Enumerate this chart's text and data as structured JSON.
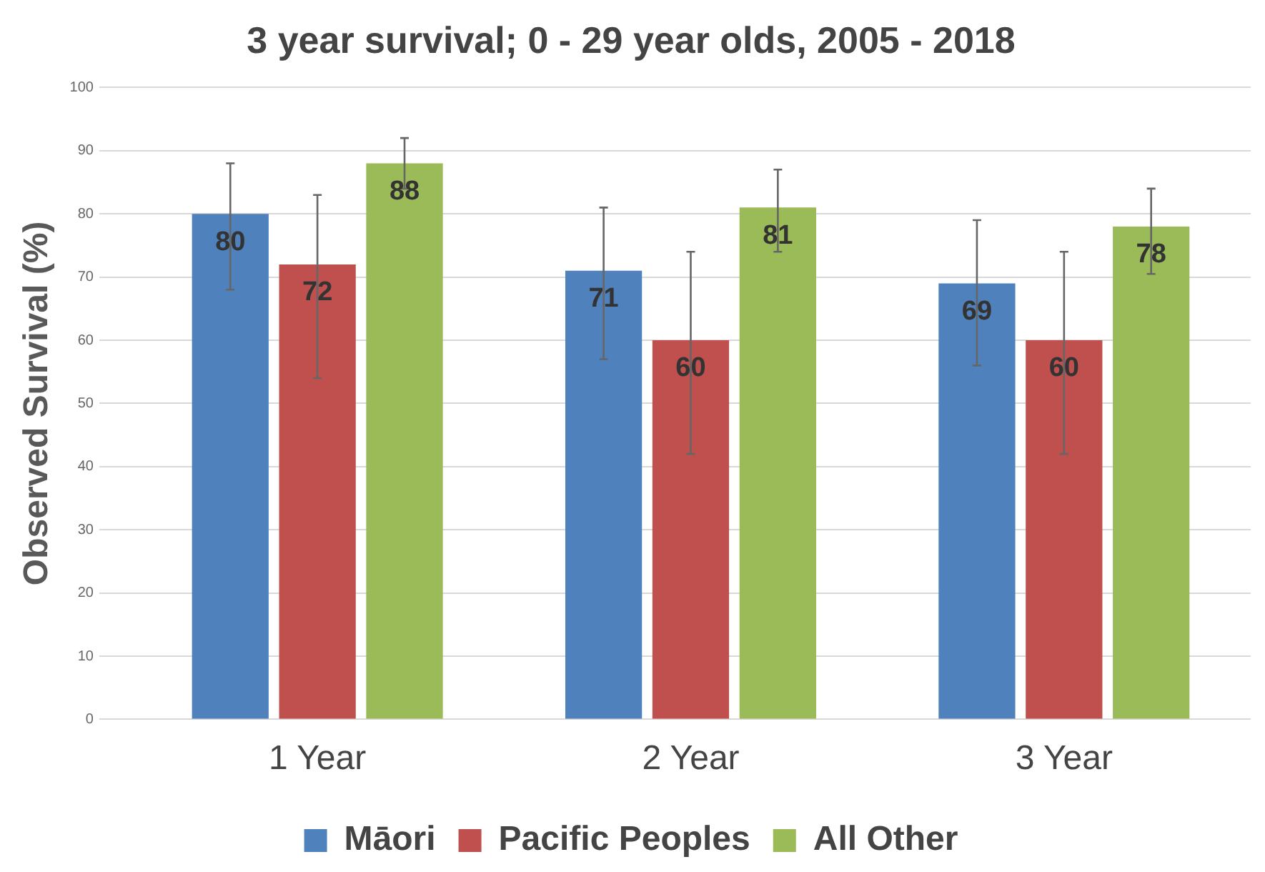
{
  "chart_data": {
    "type": "bar",
    "title": "3 year survival; 0 - 29 year olds, 2005 - 2018",
    "ylabel": "Observed Survival (%)",
    "categories": [
      "1 Year",
      "2 Year",
      "3 Year"
    ],
    "series": [
      {
        "name": "Māori",
        "color": "#4f81bd",
        "values": [
          80,
          71,
          69
        ],
        "errors": [
          [
            68,
            88
          ],
          [
            57,
            81
          ],
          [
            56,
            79
          ]
        ]
      },
      {
        "name": "Pacific Peoples",
        "color": "#c0504d",
        "values": [
          72,
          60,
          60
        ],
        "errors": [
          [
            54,
            83
          ],
          [
            42,
            74
          ],
          [
            42,
            74
          ]
        ]
      },
      {
        "name": "All Other",
        "color": "#9bbb59",
        "values": [
          88,
          81,
          78
        ],
        "errors": [
          [
            84,
            92
          ],
          [
            74,
            87
          ],
          [
            70.5,
            84
          ]
        ]
      }
    ],
    "ylim": [
      0,
      100
    ],
    "yticks": [
      0,
      10,
      20,
      30,
      40,
      50,
      60,
      70,
      80,
      90,
      100
    ],
    "grid": "y",
    "legend": "bottom",
    "data_labels": true
  }
}
